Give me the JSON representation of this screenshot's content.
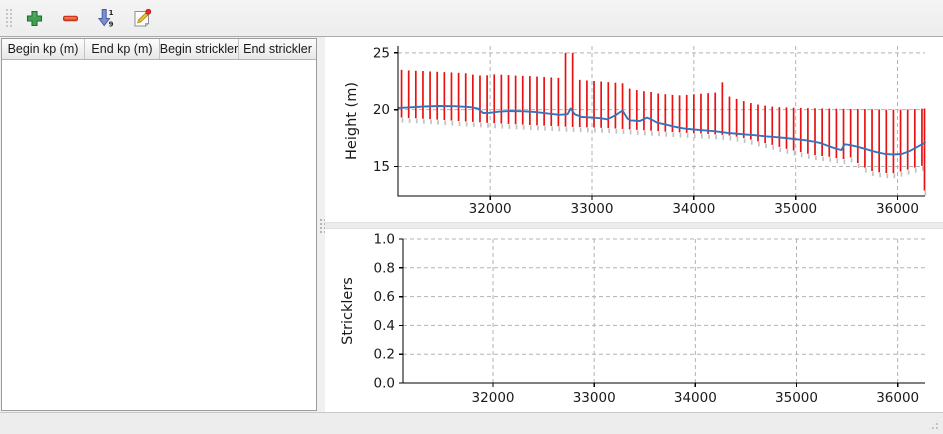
{
  "toolbar": {
    "buttons": [
      {
        "icon": "add-row-icon",
        "color": "#3f9e4f"
      },
      {
        "icon": "remove-row-icon",
        "color": "#e8432a"
      },
      {
        "icon": "sort-numeric-icon",
        "color": "#7b8fd0",
        "digits_top": "1",
        "digits_bottom": "9"
      },
      {
        "icon": "edit-icon",
        "pencil_color": "#f0c030",
        "badge_color": "#e03030"
      }
    ]
  },
  "table": {
    "columns": [
      {
        "label": "Begin kp (m)"
      },
      {
        "label": "End kp (m)"
      },
      {
        "label": "Begin strickler"
      },
      {
        "label": "End strickler"
      }
    ],
    "rows": []
  },
  "chart_data": [
    {
      "type": "line+rangebar",
      "title": "",
      "ylabel": "Height (m)",
      "xlabel": "",
      "xlim": [
        31095,
        36270
      ],
      "ylim": [
        12.4,
        25.6
      ],
      "grid": true,
      "xticks": {
        "values": [
          32000,
          33000,
          34000,
          35000,
          36000
        ],
        "labels": [
          "32000",
          "33000",
          "34000",
          "35000",
          "36000"
        ]
      },
      "yticks": {
        "values": [
          15,
          20,
          25
        ],
        "labels": [
          "15",
          "20",
          "25"
        ]
      },
      "bar_color": "#e81212",
      "bar_shadow_color": "#c2c2c2",
      "line_color": "#3a72ba",
      "bars": {
        "kp": [
          31130,
          31200,
          31270,
          31340,
          31410,
          31480,
          31550,
          31620,
          31690,
          31760,
          31830,
          31900,
          31970,
          32040,
          32110,
          32180,
          32250,
          32320,
          32390,
          32460,
          32530,
          32600,
          32670,
          32740,
          32810,
          32880,
          32950,
          33020,
          33090,
          33160,
          33230,
          33300,
          33370,
          33440,
          33510,
          33580,
          33650,
          33720,
          33790,
          33860,
          33930,
          34000,
          34070,
          34140,
          34210,
          34280,
          34350,
          34420,
          34490,
          34560,
          34630,
          34700,
          34770,
          34840,
          34910,
          34980,
          35050,
          35120,
          35190,
          35260,
          35330,
          35400,
          35470,
          35540,
          35610,
          35680,
          35750,
          35820,
          35890,
          35960,
          36030,
          36100,
          36170,
          36240,
          36265
        ],
        "top": [
          23.5,
          23.45,
          23.42,
          23.4,
          23.36,
          23.33,
          23.3,
          23.27,
          23.24,
          23.2,
          23.08,
          23.0,
          23.02,
          23.1,
          23.07,
          23.04,
          23.0,
          22.97,
          22.95,
          22.91,
          22.87,
          22.83,
          22.8,
          25.0,
          25.0,
          22.62,
          22.57,
          22.52,
          22.47,
          22.42,
          22.37,
          22.32,
          21.85,
          21.72,
          21.62,
          21.55,
          21.42,
          21.36,
          21.3,
          21.26,
          21.3,
          21.35,
          21.4,
          21.45,
          21.5,
          22.4,
          21.15,
          20.95,
          20.75,
          20.58,
          20.45,
          20.35,
          20.27,
          20.22,
          20.2,
          20.17,
          20.15,
          20.13,
          20.12,
          20.1,
          20.1,
          20.08,
          20.07,
          20.06,
          20.05,
          20.05,
          20.04,
          20.02,
          20.0,
          20.0,
          20.0,
          20.02,
          20.05,
          20.08,
          20.1
        ],
        "bottom": [
          19.3,
          19.27,
          19.24,
          19.2,
          19.16,
          19.12,
          19.08,
          19.04,
          19.0,
          18.96,
          18.92,
          18.88,
          18.84,
          18.8,
          18.77,
          18.74,
          18.71,
          18.68,
          18.65,
          18.62,
          18.59,
          18.56,
          18.53,
          18.5,
          18.48,
          18.46,
          18.44,
          18.42,
          18.4,
          18.37,
          18.34,
          18.3,
          18.26,
          18.22,
          18.18,
          18.14,
          18.1,
          18.06,
          18.02,
          17.99,
          17.96,
          17.93,
          17.9,
          17.86,
          17.82,
          17.78,
          17.72,
          17.62,
          17.5,
          17.36,
          17.2,
          17.05,
          16.9,
          16.72,
          16.55,
          16.4,
          16.26,
          16.12,
          16.0,
          15.92,
          15.85,
          15.72,
          15.65,
          15.8,
          15.3,
          14.9,
          14.6,
          14.48,
          14.42,
          14.4,
          14.55,
          14.72,
          14.9,
          15.05,
          12.88
        ]
      },
      "line": {
        "kp": [
          31100,
          31200,
          31350,
          31500,
          31650,
          31800,
          31880,
          31930,
          32000,
          32080,
          32200,
          32330,
          32450,
          32570,
          32680,
          32760,
          32790,
          32830,
          32900,
          33000,
          33080,
          33150,
          33230,
          33300,
          33350,
          33380,
          33470,
          33540,
          33580,
          33640,
          33720,
          33810,
          33900,
          34000,
          34100,
          34200,
          34300,
          34330,
          34400,
          34500,
          34600,
          34700,
          34800,
          34900,
          35000,
          35100,
          35180,
          35250,
          35320,
          35400,
          35450,
          35480,
          35530,
          35600,
          35700,
          35800,
          35880,
          35960,
          36040,
          36120,
          36200,
          36270
        ],
        "height": [
          20.15,
          20.2,
          20.28,
          20.32,
          20.3,
          20.22,
          20.1,
          19.7,
          19.72,
          19.82,
          19.88,
          19.85,
          19.78,
          19.65,
          19.55,
          19.6,
          20.1,
          19.6,
          19.35,
          19.3,
          19.25,
          19.15,
          19.5,
          19.92,
          19.2,
          19.05,
          19.0,
          19.3,
          19.15,
          18.85,
          18.7,
          18.5,
          18.35,
          18.25,
          18.18,
          18.1,
          18.0,
          17.95,
          17.9,
          17.82,
          17.75,
          17.65,
          17.58,
          17.5,
          17.4,
          17.3,
          17.18,
          17.05,
          16.8,
          16.55,
          16.45,
          16.95,
          16.9,
          16.75,
          16.5,
          16.25,
          16.1,
          16.05,
          16.1,
          16.35,
          16.75,
          17.1
        ]
      }
    },
    {
      "type": "empty",
      "title": "",
      "ylabel": "Stricklers",
      "xlabel": "",
      "xlim": [
        31110,
        36270
      ],
      "ylim": [
        0,
        1
      ],
      "grid": true,
      "xticks": {
        "values": [
          32000,
          33000,
          34000,
          35000,
          36000
        ],
        "labels": [
          "32000",
          "33000",
          "34000",
          "35000",
          "36000"
        ]
      },
      "yticks": {
        "values": [
          0.0,
          0.2,
          0.4,
          0.6,
          0.8,
          1.0
        ],
        "labels": [
          "0.0",
          "0.2",
          "0.4",
          "0.6",
          "0.8",
          "1.0"
        ]
      }
    }
  ]
}
